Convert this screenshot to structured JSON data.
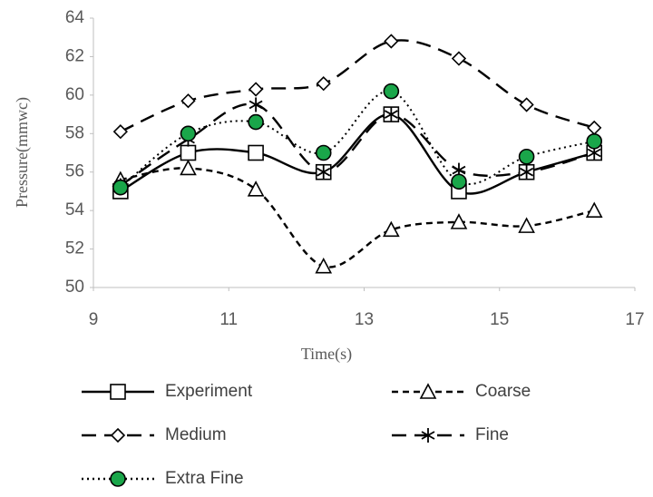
{
  "chart_data": {
    "type": "line",
    "x_label": "Time(s)",
    "y_label": "Pressure(mmwc)",
    "x": [
      9.4,
      10.4,
      11.4,
      12.4,
      13.4,
      14.4,
      15.4,
      16.4
    ],
    "xlim": [
      9,
      17
    ],
    "xticks": [
      9,
      11,
      13,
      15,
      17
    ],
    "ylim": [
      50,
      64
    ],
    "yticks": [
      50,
      52,
      54,
      56,
      58,
      60,
      62,
      64
    ],
    "grid": false,
    "legend": "bottom",
    "series": [
      {
        "name": "Experiment",
        "color": "#000000",
        "marker": "square",
        "line_style": "solid",
        "values": [
          55,
          57,
          57,
          56,
          59,
          55,
          56,
          57
        ]
      },
      {
        "name": "Coarse",
        "color": "#000000",
        "marker": "triangle",
        "line_style": "dash",
        "values": [
          55.6,
          56.2,
          55.1,
          51.1,
          53,
          53.4,
          53.2,
          54
        ]
      },
      {
        "name": "Medium",
        "color": "#000000",
        "marker": "diamond",
        "line_style": "longdash",
        "values": [
          58.1,
          59.7,
          60.3,
          60.6,
          62.8,
          61.9,
          59.5,
          58.3
        ]
      },
      {
        "name": "Fine",
        "color": "#000000",
        "marker": "asterisk",
        "line_style": "longdash",
        "values": [
          55.3,
          57.7,
          59.5,
          56,
          59,
          56.1,
          56,
          57
        ]
      },
      {
        "name": "Extra Fine",
        "color": "#000000",
        "marker": "circle",
        "marker_fill": "#1aa64a",
        "line_style": "dot",
        "values": [
          55.2,
          58,
          58.6,
          57,
          60.2,
          55.5,
          56.8,
          57.6
        ]
      }
    ]
  }
}
